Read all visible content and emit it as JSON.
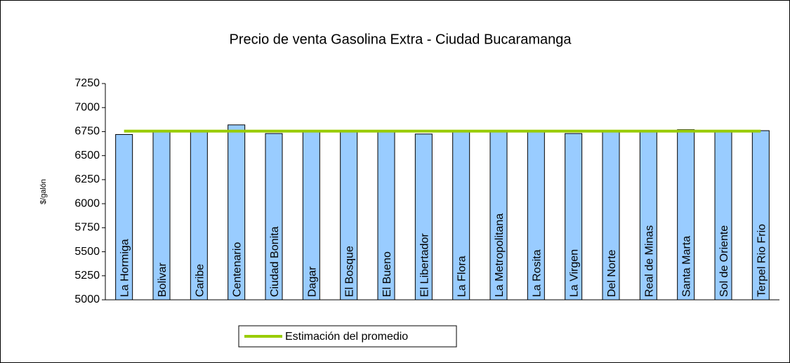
{
  "chart_data": {
    "type": "bar",
    "title": "Precio de venta Gasolina Extra - Ciudad Bucaramanga",
    "y_label": "$/galón",
    "categories": [
      "La Hormiga",
      "Bolivar",
      "Caribe",
      "Centenario",
      "Ciudad Bonita",
      "Dagar",
      "El Bosque",
      "El Bueno",
      "El Libertador",
      "La Flora",
      "La Metropolitana",
      "La Rosita",
      "La Virgen",
      "Del Norte",
      "Real de Minas",
      "Santa Marta",
      "Sol de Oriente",
      "Terpel Rio Frio"
    ],
    "series": [
      {
        "type": "bar",
        "color": "#99ccff",
        "values": [
          6720,
          6755,
          6755,
          6820,
          6730,
          6755,
          6755,
          6755,
          6725,
          6755,
          6755,
          6755,
          6730,
          6755,
          6755,
          6770,
          6755,
          6760
        ]
      },
      {
        "type": "line",
        "name": "Estimación del promedio",
        "color": "#99cc00",
        "values": [
          6755,
          6755,
          6755,
          6755,
          6755,
          6755,
          6755,
          6755,
          6755,
          6755,
          6755,
          6755,
          6755,
          6755,
          6755,
          6755,
          6755,
          6755
        ]
      }
    ],
    "ylim": [
      5000,
      7250
    ],
    "yticks": [
      5000,
      5250,
      5500,
      5750,
      6000,
      6250,
      6500,
      6750,
      7000,
      7250
    ],
    "grid": false,
    "legend": "bottom"
  }
}
